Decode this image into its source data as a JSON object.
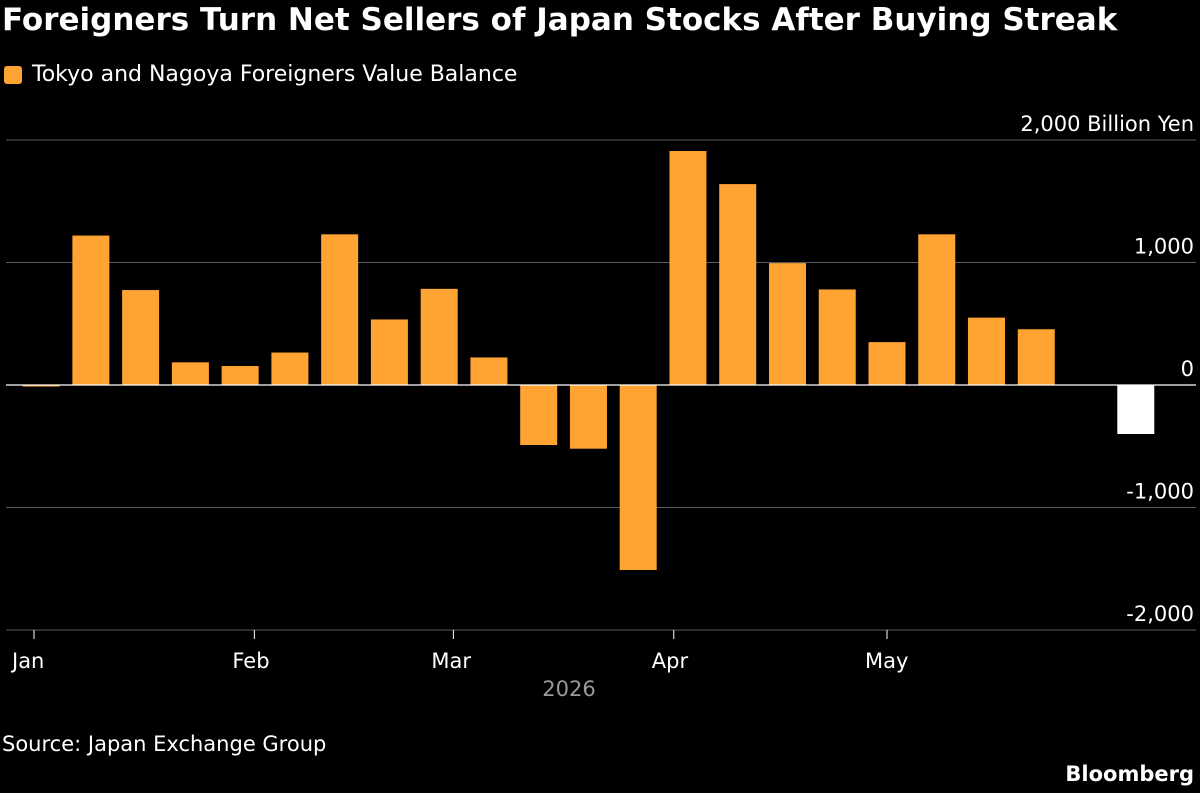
{
  "title": "Foreigners Turn Net Sellers of Japan Stocks After Buying Streak",
  "legend": {
    "label": "Tokyo and Nagoya Foreigners Value Balance"
  },
  "source": "Source: Japan Exchange Group",
  "brand": "Bloomberg",
  "colors": {
    "background": "#000000",
    "bar": "#ffa433",
    "latest_bar": "#ffffff",
    "grid": "#5a5a5a",
    "zero_line": "#ffffff",
    "axis_text": "#ffffff",
    "year_text": "#9a9a9a"
  },
  "chart_data": {
    "type": "bar",
    "title": "Foreigners Turn Net Sellers of Japan Stocks After Buying Streak",
    "ylabel": "",
    "unit_label": "2,000 Billion Yen",
    "ylim": [
      -2000,
      2000
    ],
    "yticks": [
      2000,
      1000,
      0,
      -1000,
      -2000
    ],
    "ytick_labels": [
      "2,000 Billion Yen",
      "1,000",
      "0",
      "-1,000",
      "-2,000"
    ],
    "xtick_labels": [
      "Jan",
      "Feb",
      "Mar",
      "Apr",
      "May"
    ],
    "xtick_dates": [
      "2026-01-01",
      "2026-02-01",
      "2026-03-01",
      "2026-04-01",
      "2026-05-01"
    ],
    "year_label": "2026",
    "grid": true,
    "legend_position": "top-left",
    "series": [
      {
        "name": "Tokyo and Nagoya Foreigners Value Balance",
        "x": [
          "2026-01-02",
          "2026-01-09",
          "2026-01-16",
          "2026-01-23",
          "2026-01-30",
          "2026-02-06",
          "2026-02-13",
          "2026-02-20",
          "2026-02-27",
          "2026-03-06",
          "2026-03-13",
          "2026-03-20",
          "2026-03-27",
          "2026-04-03",
          "2026-04-10",
          "2026-04-17",
          "2026-04-24",
          "2026-05-01",
          "2026-05-08",
          "2026-05-15",
          "2026-05-22",
          "2026-05-29",
          "2026-06-05"
        ],
        "values": [
          -10,
          1220,
          775,
          185,
          155,
          265,
          1230,
          535,
          785,
          225,
          -490,
          -520,
          -1510,
          1910,
          1640,
          995,
          780,
          350,
          1230,
          550,
          455,
          0,
          -400
        ],
        "highlight_last": true
      }
    ]
  }
}
